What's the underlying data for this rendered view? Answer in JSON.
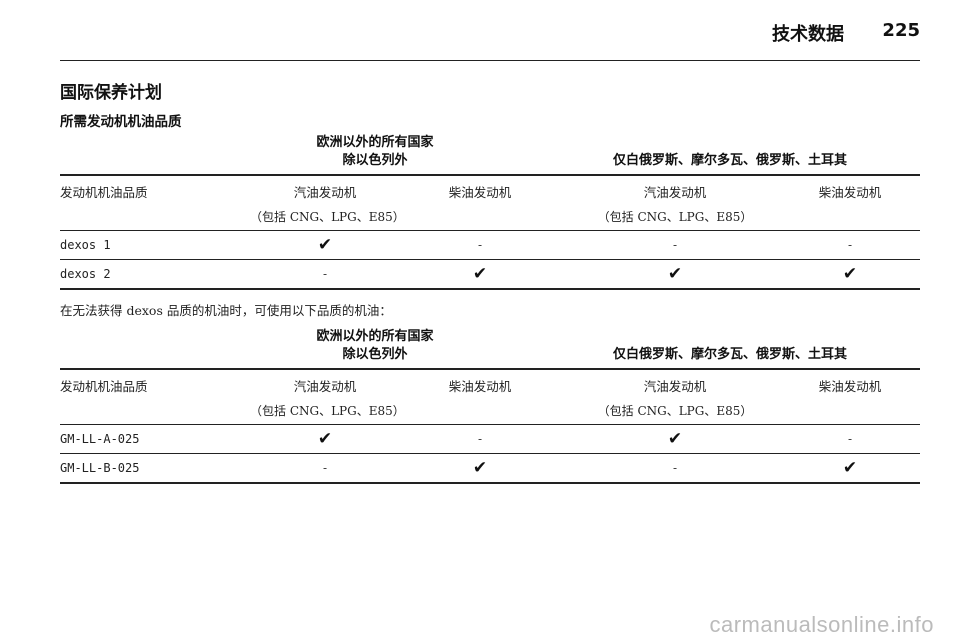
{
  "header": {
    "title": "技术数据",
    "page_number": "225"
  },
  "section_title": "国际保养计划",
  "subsection_title": "所需发动机机油品质",
  "region_a": [
    "欧洲以外的所有国家",
    "除以色列外"
  ],
  "region_b": "仅白俄罗斯、摩尔多瓦、俄罗斯、土耳其",
  "columns": {
    "label": "发动机机油品质",
    "gasoline": "汽油发动机",
    "diesel": "柴油发动机",
    "gasoline_note": "（包括 CNG、LPG、E85）"
  },
  "check_symbol": "✔",
  "dash_symbol": "-",
  "table1_rows": [
    {
      "label": "dexos 1",
      "values": [
        "✔",
        "-",
        "-",
        "-"
      ]
    },
    {
      "label": "dexos 2",
      "values": [
        "-",
        "✔",
        "✔",
        "✔"
      ]
    }
  ],
  "note": "在无法获得 dexos 品质的机油时，可使用以下品质的机油：",
  "table2_rows": [
    {
      "label": "GM-LL-A-025",
      "values": [
        "✔",
        "-",
        "✔",
        "-"
      ]
    },
    {
      "label": "GM-LL-B-025",
      "values": [
        "-",
        "✔",
        "-",
        "✔"
      ]
    }
  ],
  "watermark": "carmanualsonline.info"
}
